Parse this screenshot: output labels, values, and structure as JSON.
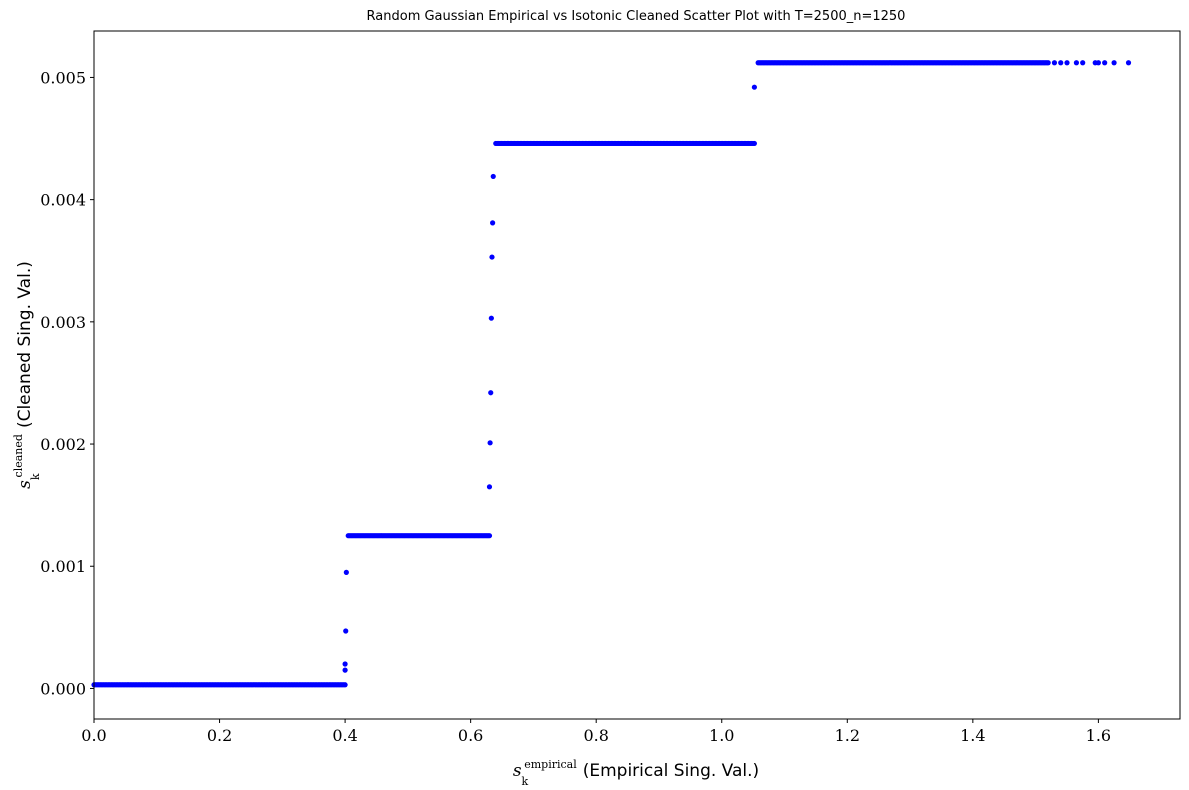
{
  "chart_data": {
    "type": "scatter",
    "title": "Random Gaussian Empirical vs Isotonic Cleaned Scatter Plot with T=2500_n=1250",
    "xlabel": {
      "symbol": "s",
      "subscript": "k",
      "superscript": "empirical",
      "text": "(Empirical Sing. Val.)"
    },
    "ylabel": {
      "symbol": "s",
      "subscript": "k",
      "superscript": "cleaned",
      "text": "(Cleaned Sing. Val.)"
    },
    "xlim": [
      0.0,
      1.73
    ],
    "ylim": [
      -0.00025,
      0.00538
    ],
    "xticks": [
      0.0,
      0.2,
      0.4,
      0.6,
      0.8,
      1.0,
      1.2,
      1.4,
      1.6
    ],
    "xtick_labels": [
      "0.0",
      "0.2",
      "0.4",
      "0.6",
      "0.8",
      "1.0",
      "1.2",
      "1.4",
      "1.6"
    ],
    "yticks": [
      0.0,
      0.001,
      0.002,
      0.003,
      0.004,
      0.005
    ],
    "ytick_labels": [
      "0.000",
      "0.001",
      "0.002",
      "0.003",
      "0.004",
      "0.005"
    ],
    "grid": false,
    "marker_color": "#0000ff",
    "plateaus": [
      {
        "x_start": 0.0,
        "x_end": 0.4,
        "y": 3e-05,
        "count": 160
      },
      {
        "x_start": 0.405,
        "x_end": 0.63,
        "y": 0.00125,
        "count": 110
      },
      {
        "x_start": 0.64,
        "x_end": 1.052,
        "y": 0.00446,
        "count": 180
      },
      {
        "x_start": 1.058,
        "x_end": 1.52,
        "y": 0.00512,
        "count": 200
      }
    ],
    "points": [
      [
        0.4,
        0.00015
      ],
      [
        0.4,
        0.0002
      ],
      [
        0.401,
        0.00047
      ],
      [
        0.402,
        0.00095
      ],
      [
        0.63,
        0.00165
      ],
      [
        0.631,
        0.00201
      ],
      [
        0.632,
        0.00242
      ],
      [
        0.633,
        0.00303
      ],
      [
        0.634,
        0.00353
      ],
      [
        0.635,
        0.00381
      ],
      [
        0.636,
        0.00419
      ],
      [
        1.052,
        0.00492
      ],
      [
        1.53,
        0.00512
      ],
      [
        1.54,
        0.00512
      ],
      [
        1.55,
        0.00512
      ],
      [
        1.565,
        0.00512
      ],
      [
        1.575,
        0.00512
      ],
      [
        1.595,
        0.00512
      ],
      [
        1.6,
        0.00512
      ],
      [
        1.61,
        0.00512
      ],
      [
        1.625,
        0.00512
      ],
      [
        1.648,
        0.00512
      ]
    ]
  }
}
